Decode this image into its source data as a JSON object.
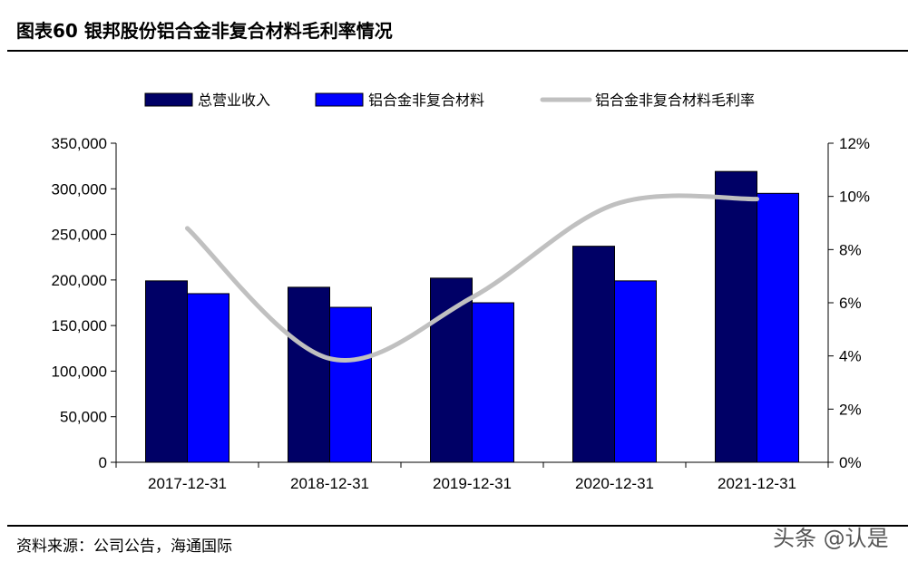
{
  "header": {
    "title": "图表60  银邦股份铝合金非复合材料毛利率情况"
  },
  "footer": {
    "source": "资料来源：公司公告，海通国际",
    "watermark": "头条 @认是"
  },
  "colors": {
    "revenue": "#000066",
    "material": "#0000ff",
    "margin": "#c0c0c0"
  },
  "chart_data": {
    "type": "bar",
    "categories": [
      "2017-12-31",
      "2018-12-31",
      "2019-12-31",
      "2020-12-31",
      "2021-12-31"
    ],
    "series": [
      {
        "name": "总营业收入",
        "kind": "bar",
        "axis": "left",
        "values": [
          199000,
          192000,
          202000,
          237000,
          319000
        ]
      },
      {
        "name": "铝合金非复合材料",
        "kind": "bar",
        "axis": "left",
        "values": [
          185000,
          170000,
          175000,
          199000,
          295000
        ]
      },
      {
        "name": "铝合金非复合材料毛利率",
        "kind": "line",
        "axis": "right",
        "smooth": true,
        "values": [
          8.8,
          3.9,
          6.2,
          9.7,
          9.9
        ]
      }
    ],
    "yleft": {
      "min": 0,
      "max": 350000,
      "ticks": [
        "0",
        "50,000",
        "100,000",
        "150,000",
        "200,000",
        "250,000",
        "300,000",
        "350,000"
      ]
    },
    "yright": {
      "min": 0,
      "max": 12,
      "ticks": [
        "0%",
        "2%",
        "4%",
        "6%",
        "8%",
        "10%",
        "12%"
      ]
    },
    "legend_position": "top",
    "grid": false
  }
}
